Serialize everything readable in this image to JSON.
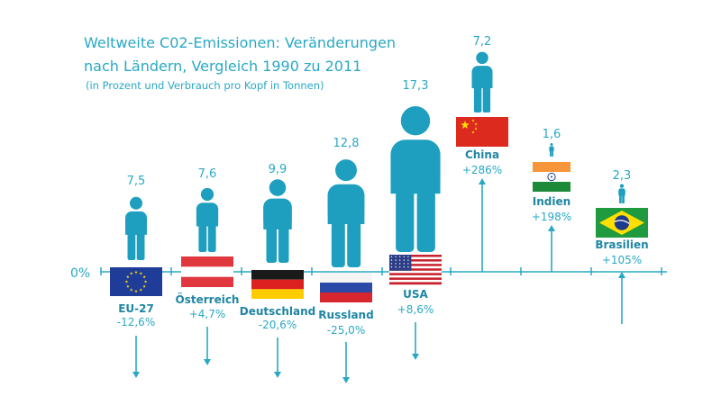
{
  "chart_data": {
    "type": "bar",
    "title_line1": "Weltweite C02-Emissionen: Veränderungen",
    "title_line2": "nach Ländern, Vergleich 1990 zu 2011",
    "subtitle": "(in Prozent und Verbrauch pro Kopf in Tonnen)",
    "zero_label": "0%",
    "categories": [
      {
        "name": "EU-27",
        "change": -12.6,
        "change_label": "-12,6%",
        "per_capita": 7.5,
        "per_capita_label": "7,5",
        "flag": "eu"
      },
      {
        "name": "Österreich",
        "change": 4.7,
        "change_label": "+4,7%",
        "per_capita": 7.6,
        "per_capita_label": "7,6",
        "flag": "austria"
      },
      {
        "name": "Deutschland",
        "change": -20.6,
        "change_label": "-20,6%",
        "per_capita": 9.9,
        "per_capita_label": "9,9",
        "flag": "germany"
      },
      {
        "name": "Russland",
        "change": -25.0,
        "change_label": "-25,0%",
        "per_capita": 12.8,
        "per_capita_label": "12,8",
        "flag": "russia"
      },
      {
        "name": "USA",
        "change": 8.6,
        "change_label": "+8,6%",
        "per_capita": 17.3,
        "per_capita_label": "17,3",
        "flag": "usa"
      },
      {
        "name": "China",
        "change": 286,
        "change_label": "+286%",
        "per_capita": 7.2,
        "per_capita_label": "7,2",
        "flag": "china"
      },
      {
        "name": "Indien",
        "change": 198,
        "change_label": "+198%",
        "per_capita": 1.6,
        "per_capita_label": "1,6",
        "flag": "india"
      },
      {
        "name": "Brasilien",
        "change": 105,
        "change_label": "+105%",
        "per_capita": 2.3,
        "per_capita_label": "2,3",
        "flag": "brazil"
      }
    ],
    "colors": {
      "accent": "#29a8c4",
      "figure": "#1f9fbf",
      "dark": "#1f86a3"
    }
  }
}
